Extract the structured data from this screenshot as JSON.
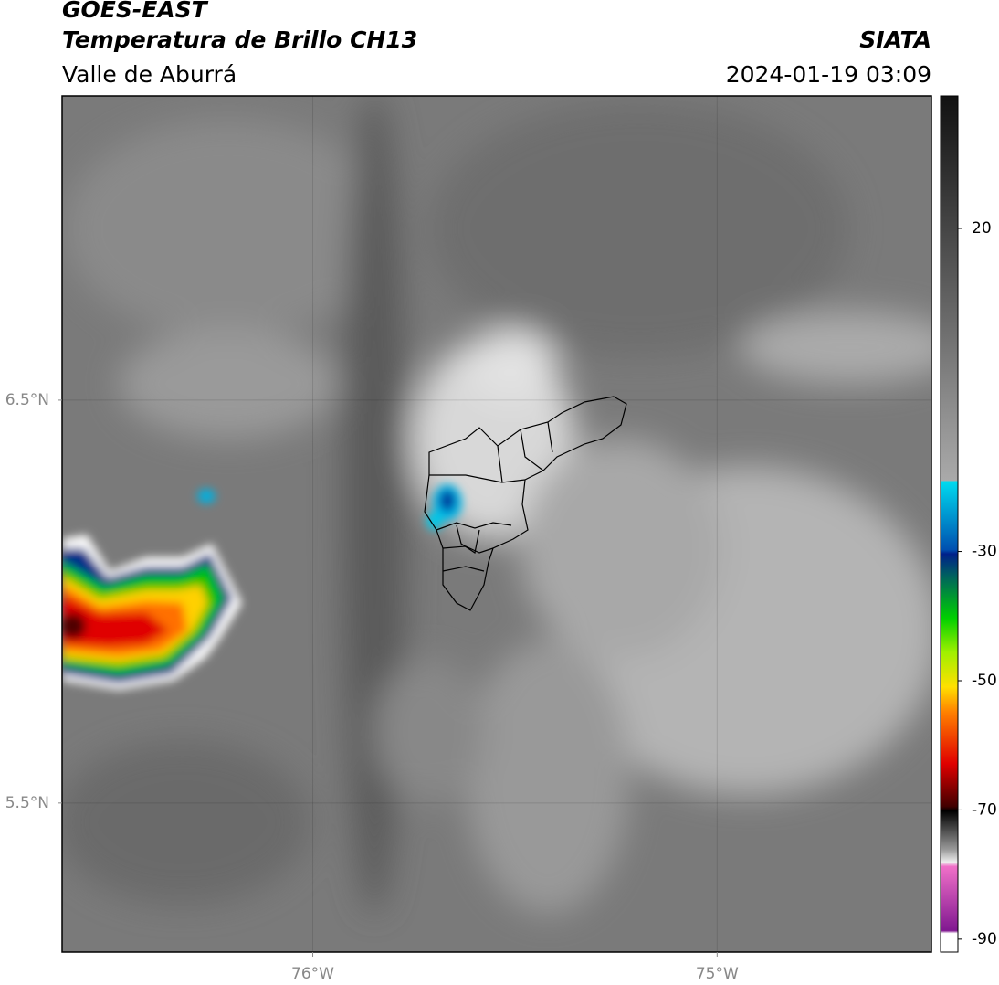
{
  "header": {
    "title": "GOES-EAST",
    "subtitle": "Temperatura de Brillo CH13",
    "region": "Valle de Aburrá",
    "source": "SIATA",
    "datetime": "2024-01-19 03:09"
  },
  "map": {
    "xlim": [
      -76.62,
      -74.47
    ],
    "ylim": [
      5.13,
      7.255
    ],
    "xticks": [
      {
        "value": -76,
        "label": "76°W"
      },
      {
        "value": -75,
        "label": "75°W"
      }
    ],
    "yticks": [
      {
        "value": 6.5,
        "label": "6.5°N"
      },
      {
        "value": 5.5,
        "label": "5.5°N"
      }
    ]
  },
  "colorbar": {
    "lim": [
      -92,
      40.5
    ],
    "ticks": [
      20,
      -30,
      -50,
      -70,
      -90
    ]
  }
}
